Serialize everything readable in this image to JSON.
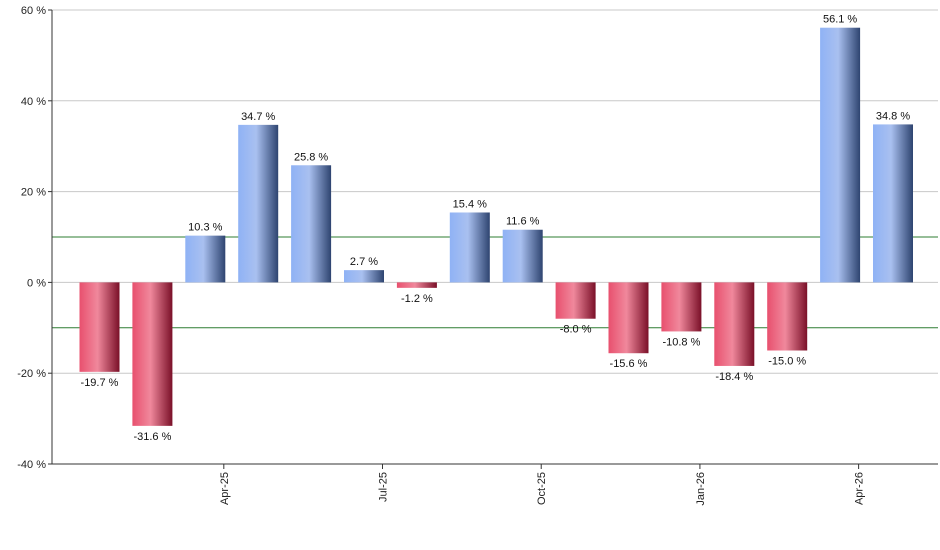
{
  "chart_data": {
    "type": "bar",
    "title": "",
    "xlabel": "",
    "ylabel": "",
    "ylim": [
      -40,
      60
    ],
    "y_ticks": [
      60,
      40,
      20,
      0,
      -20,
      -40
    ],
    "y_tick_labels": [
      "60 %",
      "40 %",
      "20 %",
      "0 %",
      "-20 %",
      "-40 %"
    ],
    "grid": true,
    "reference_lines": [
      10,
      -10
    ],
    "reference_line_color": "#2e7d32",
    "positive_color": "#7a9be0",
    "negative_color": "#c8324f",
    "x_tick_labels": [
      "Apr-25",
      "Jul-25",
      "Oct-25",
      "Jan-26",
      "Apr-26"
    ],
    "x_tick_positions": [
      2.35,
      5.35,
      8.35,
      11.35,
      14.35
    ],
    "values": [
      -19.7,
      -31.6,
      10.3,
      34.7,
      25.8,
      2.7,
      -1.2,
      15.4,
      11.6,
      -8.0,
      -15.6,
      -10.8,
      -18.4,
      -15.0,
      56.1,
      34.8
    ],
    "value_labels": [
      "-19.7 %",
      "-31.6 %",
      "10.3 %",
      "34.7 %",
      "25.8 %",
      "2.7 %",
      "-1.2 %",
      "15.4 %",
      "11.6 %",
      "-8.0 %",
      "-15.6 %",
      "-10.8 %",
      "-18.4 %",
      "-15.0 %",
      "56.1 %",
      "34.8 %"
    ]
  }
}
